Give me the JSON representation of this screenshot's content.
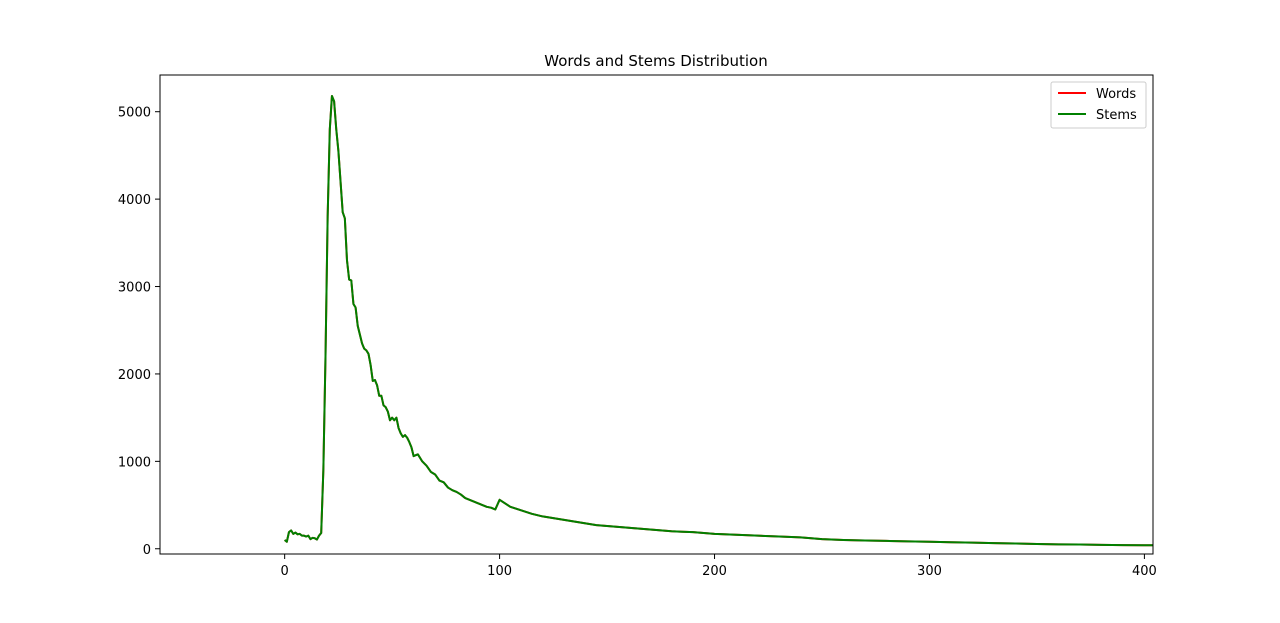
{
  "chart_data": {
    "type": "line",
    "title": "Words and Stems Distribution",
    "xlabel": "",
    "ylabel": "",
    "xlim": [
      -58,
      404
    ],
    "ylim": [
      -60,
      5420
    ],
    "xticks": [
      0,
      100,
      200,
      300,
      400
    ],
    "yticks": [
      0,
      1000,
      2000,
      3000,
      4000,
      5000
    ],
    "xtick_labels": [
      "0",
      "100",
      "200",
      "300",
      "400"
    ],
    "ytick_labels": [
      "0",
      "1000",
      "2000",
      "3000",
      "4000",
      "5000"
    ],
    "grid": false,
    "legend": "top-right",
    "series": [
      {
        "name": "Words",
        "color": "#ff0000",
        "x": [
          0,
          1,
          2,
          3,
          4,
          5,
          6,
          7,
          8,
          9,
          10,
          11,
          12,
          13,
          14,
          15,
          16,
          17,
          18,
          19,
          20,
          21,
          22,
          23,
          24,
          25,
          26,
          27,
          28,
          29,
          30,
          31,
          32,
          33,
          34,
          35,
          36,
          37,
          38,
          39,
          40,
          41,
          42,
          43,
          44,
          45,
          46,
          47,
          48,
          49,
          50,
          51,
          52,
          53,
          54,
          55,
          56,
          57,
          58,
          59,
          60,
          62,
          64,
          66,
          68,
          70,
          72,
          74,
          76,
          78,
          80,
          82,
          84,
          86,
          88,
          90,
          92,
          94,
          96,
          98,
          100,
          105,
          110,
          115,
          120,
          125,
          130,
          135,
          140,
          145,
          150,
          155,
          160,
          165,
          170,
          175,
          180,
          185,
          190,
          195,
          200,
          210,
          220,
          230,
          240,
          250,
          260,
          270,
          280,
          290,
          300,
          310,
          320,
          330,
          340,
          350,
          360,
          370,
          380,
          390,
          400,
          404
        ],
        "y": [
          100,
          80,
          190,
          210,
          170,
          185,
          165,
          170,
          150,
          150,
          140,
          150,
          110,
          125,
          120,
          105,
          150,
          180,
          900,
          2200,
          3800,
          4800,
          5180,
          5120,
          4800,
          4550,
          4200,
          3850,
          3780,
          3300,
          3080,
          3070,
          2800,
          2760,
          2550,
          2450,
          2350,
          2290,
          2270,
          2230,
          2100,
          1920,
          1930,
          1870,
          1750,
          1750,
          1640,
          1620,
          1570,
          1470,
          1500,
          1470,
          1500,
          1380,
          1320,
          1280,
          1300,
          1270,
          1220,
          1160,
          1060,
          1080,
          1000,
          950,
          880,
          850,
          780,
          760,
          700,
          670,
          650,
          620,
          580,
          560,
          540,
          520,
          500,
          480,
          470,
          450,
          560,
          480,
          440,
          400,
          370,
          350,
          330,
          310,
          290,
          270,
          260,
          250,
          240,
          230,
          220,
          210,
          200,
          195,
          190,
          180,
          170,
          160,
          150,
          140,
          130,
          110,
          100,
          95,
          90,
          85,
          80,
          75,
          70,
          65,
          60,
          55,
          50,
          48,
          45,
          42,
          40,
          40
        ]
      },
      {
        "name": "Stems",
        "color": "#008000",
        "x": [
          0,
          1,
          2,
          3,
          4,
          5,
          6,
          7,
          8,
          9,
          10,
          11,
          12,
          13,
          14,
          15,
          16,
          17,
          18,
          19,
          20,
          21,
          22,
          23,
          24,
          25,
          26,
          27,
          28,
          29,
          30,
          31,
          32,
          33,
          34,
          35,
          36,
          37,
          38,
          39,
          40,
          41,
          42,
          43,
          44,
          45,
          46,
          47,
          48,
          49,
          50,
          51,
          52,
          53,
          54,
          55,
          56,
          57,
          58,
          59,
          60,
          62,
          64,
          66,
          68,
          70,
          72,
          74,
          76,
          78,
          80,
          82,
          84,
          86,
          88,
          90,
          92,
          94,
          96,
          98,
          100,
          105,
          110,
          115,
          120,
          125,
          130,
          135,
          140,
          145,
          150,
          155,
          160,
          165,
          170,
          175,
          180,
          185,
          190,
          195,
          200,
          210,
          220,
          230,
          240,
          250,
          260,
          270,
          280,
          290,
          300,
          310,
          320,
          330,
          340,
          350,
          360,
          370,
          380,
          390,
          400,
          404
        ],
        "y": [
          100,
          80,
          190,
          210,
          170,
          185,
          165,
          170,
          150,
          150,
          140,
          150,
          110,
          125,
          120,
          105,
          150,
          180,
          900,
          2200,
          3800,
          4800,
          5180,
          5120,
          4800,
          4550,
          4200,
          3850,
          3780,
          3300,
          3080,
          3070,
          2800,
          2760,
          2550,
          2450,
          2350,
          2290,
          2270,
          2230,
          2100,
          1920,
          1930,
          1870,
          1750,
          1750,
          1640,
          1620,
          1570,
          1470,
          1500,
          1470,
          1500,
          1380,
          1320,
          1280,
          1300,
          1270,
          1220,
          1160,
          1060,
          1080,
          1000,
          950,
          880,
          850,
          780,
          760,
          700,
          670,
          650,
          620,
          580,
          560,
          540,
          520,
          500,
          480,
          470,
          450,
          560,
          480,
          440,
          400,
          370,
          350,
          330,
          310,
          290,
          270,
          260,
          250,
          240,
          230,
          220,
          210,
          200,
          195,
          190,
          180,
          170,
          160,
          150,
          140,
          130,
          110,
          100,
          95,
          90,
          85,
          80,
          75,
          70,
          65,
          60,
          55,
          50,
          48,
          45,
          42,
          40,
          40
        ]
      }
    ]
  }
}
